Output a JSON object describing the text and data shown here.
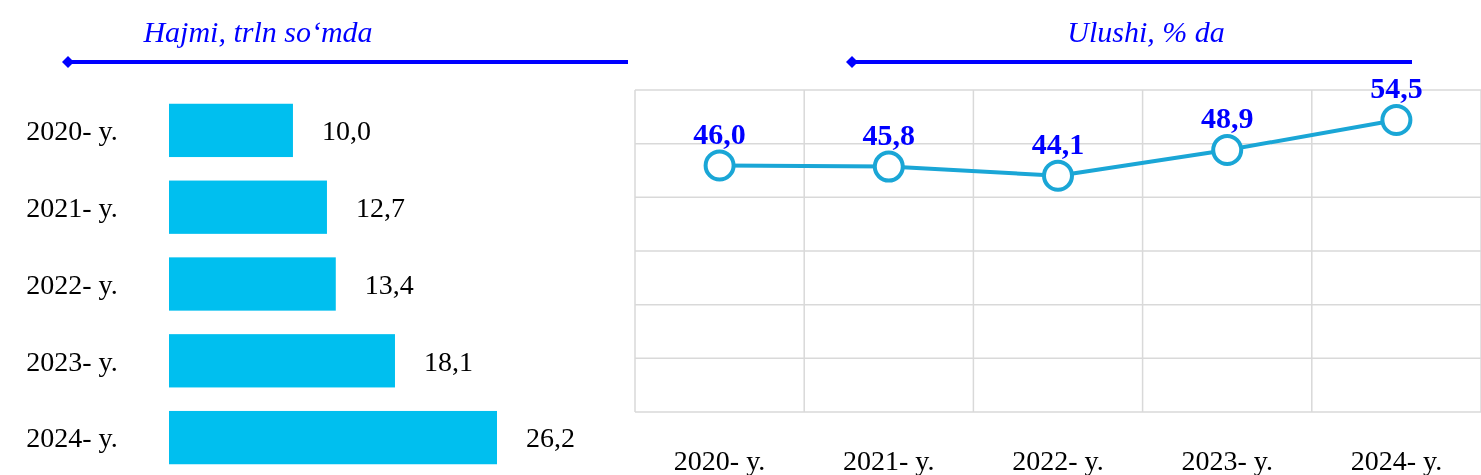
{
  "chart_data": [
    {
      "type": "bar",
      "orientation": "horizontal",
      "title": "Hajmi, trln so‘mda",
      "categories": [
        "2020- y.",
        "2021- y.",
        "2022- y.",
        "2023- y.",
        "2024- y."
      ],
      "values": [
        10.0,
        12.7,
        13.4,
        18.1,
        26.2
      ],
      "value_labels": [
        "10,0",
        "12,7",
        "13,4",
        "18,1",
        "26,2"
      ],
      "color": "#00bfef",
      "tick_labels": "y"
    },
    {
      "type": "line",
      "title": "Ulushi, % da",
      "categories": [
        "2020- y.",
        "2021- y.",
        "2022- y.",
        "2023- y.",
        "2024- y."
      ],
      "values": [
        46.0,
        45.8,
        44.1,
        48.9,
        54.5
      ],
      "value_labels": [
        "46,0",
        "45,8",
        "44,1",
        "48,9",
        "54,5"
      ],
      "color": "#1aa6d6",
      "marker": "circle",
      "grid": true,
      "tick_labels": "x"
    }
  ]
}
